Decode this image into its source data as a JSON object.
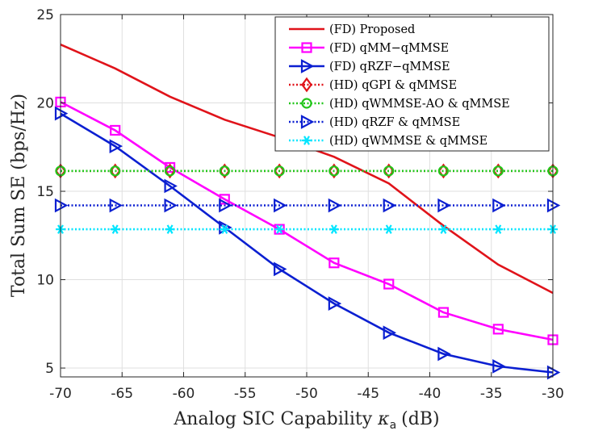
{
  "chart_data": {
    "type": "line",
    "title": "",
    "xlabel": "Analog SIC Capability",
    "xlabel_symbol": "κ",
    "xlabel_subscript": "a",
    "xlabel_unit": "(dB)",
    "ylabel": "Total Sum SE (bps/Hz)",
    "xlim": [
      -70,
      -30
    ],
    "ylim": [
      4.5,
      25
    ],
    "xticks": [
      -70,
      -65,
      -60,
      -55,
      -50,
      -45,
      -40,
      -35,
      -30
    ],
    "xtick_labels": [
      "-70",
      "-65",
      "-60",
      "-55",
      "-50",
      "-45",
      "-40",
      "-35",
      "-30"
    ],
    "yticks": [
      5,
      10,
      15,
      20,
      25
    ],
    "ytick_labels": [
      "5",
      "10",
      "15",
      "20",
      "25"
    ],
    "grid": true,
    "legend_position": "top-right",
    "x": [
      -70,
      -65.56,
      -61.11,
      -56.67,
      -52.22,
      -47.78,
      -43.33,
      -38.89,
      -34.44,
      -30
    ],
    "series": [
      {
        "name": "(FD) Proposed",
        "color": "#e0131a",
        "line": "solid",
        "marker": "none",
        "values": [
          23.3,
          21.95,
          20.35,
          19.05,
          18.05,
          16.95,
          15.45,
          13.05,
          10.85,
          9.25
        ]
      },
      {
        "name": "(FD) qMM−qMMSE",
        "color": "#ff00ff",
        "line": "solid",
        "marker": "square",
        "values": [
          20.05,
          18.45,
          16.35,
          14.55,
          12.85,
          10.95,
          9.75,
          8.15,
          7.2,
          6.6
        ]
      },
      {
        "name": "(FD) qRZF−qMMSE",
        "color": "#0b1fd1",
        "line": "solid",
        "marker": "triangle-right",
        "values": [
          19.4,
          17.55,
          15.3,
          12.95,
          10.6,
          8.65,
          7.0,
          5.8,
          5.1,
          4.75
        ]
      },
      {
        "name": "(HD) qGPI & qMMSE",
        "color": "#e0131a",
        "line": "dotted",
        "marker": "diamond",
        "values": [
          16.15,
          16.15,
          16.15,
          16.15,
          16.15,
          16.15,
          16.15,
          16.15,
          16.15,
          16.15
        ]
      },
      {
        "name": "(HD) qWMMSE-AO & qMMSE",
        "color": "#22c51a",
        "line": "dotted",
        "marker": "circle",
        "values": [
          16.15,
          16.15,
          16.15,
          16.15,
          16.15,
          16.15,
          16.15,
          16.15,
          16.15,
          16.15
        ]
      },
      {
        "name": "(HD) qRZF & qMMSE",
        "color": "#0b1fd1",
        "line": "dotted",
        "marker": "triangle-right",
        "values": [
          14.2,
          14.2,
          14.2,
          14.2,
          14.2,
          14.2,
          14.2,
          14.2,
          14.2,
          14.2
        ]
      },
      {
        "name": "(HD) qWMMSE & qMMSE",
        "color": "#00e5ff",
        "line": "dotted",
        "marker": "asterisk",
        "values": [
          12.85,
          12.85,
          12.85,
          12.85,
          12.85,
          12.85,
          12.85,
          12.85,
          12.85,
          12.85
        ]
      }
    ]
  }
}
